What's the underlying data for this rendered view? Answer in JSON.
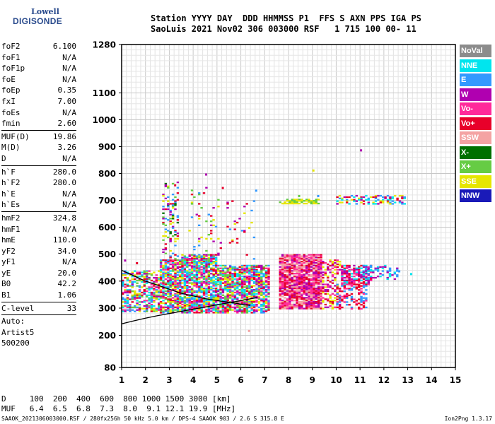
{
  "logo": {
    "line1": "Lowell",
    "line2": "DIGISONDE"
  },
  "header": {
    "line1": "Station YYYY DAY  DDD HHMMSS P1  FFS S AXN PPS IGA PS",
    "line2": "SaoLuis 2021 Nov02 306 003000 RSF   1 715 100 00- 11"
  },
  "params": {
    "g1": [
      [
        "foF2",
        "6.100"
      ],
      [
        "foF1",
        "N/A"
      ],
      [
        "foF1p",
        "N/A"
      ],
      [
        "foE",
        "N/A"
      ],
      [
        "foEp",
        "0.35"
      ],
      [
        "fxI",
        "7.00"
      ],
      [
        "foEs",
        "N/A"
      ],
      [
        "fmin",
        "2.60"
      ]
    ],
    "g2": [
      [
        "MUF(D)",
        "19.86"
      ],
      [
        "M(D)",
        "3.26"
      ],
      [
        "D",
        "N/A"
      ]
    ],
    "g3": [
      [
        "h`F",
        "280.0"
      ],
      [
        "h`F2",
        "280.0"
      ],
      [
        "h`E",
        "N/A"
      ],
      [
        "h`Es",
        "N/A"
      ]
    ],
    "g4": [
      [
        "hmF2",
        "324.8"
      ],
      [
        "hmF1",
        "N/A"
      ],
      [
        "hmE",
        "110.0"
      ],
      [
        "yF2",
        "34.0"
      ],
      [
        "yF1",
        "N/A"
      ],
      [
        "yE",
        "20.0"
      ],
      [
        "B0",
        "42.2"
      ],
      [
        "B1",
        "1.06"
      ]
    ],
    "g5": [
      [
        "C-level",
        "33"
      ]
    ],
    "auto": [
      "Auto:",
      "Artist5",
      "500200"
    ]
  },
  "legend": [
    {
      "label": "NoVal",
      "color": "#8c8c8c"
    },
    {
      "label": "NNE",
      "color": "#00e5ee"
    },
    {
      "label": "E",
      "color": "#3399ff"
    },
    {
      "label": "W",
      "color": "#b000b0"
    },
    {
      "label": "Vo-",
      "color": "#ff2a9a"
    },
    {
      "label": "Vo+",
      "color": "#e8002a"
    },
    {
      "label": "SSW",
      "color": "#f4a3a3"
    },
    {
      "label": "X-",
      "color": "#007000"
    },
    {
      "label": "X+",
      "color": "#66cc44"
    },
    {
      "label": "SSE",
      "color": "#e6e600"
    },
    {
      "label": "NNW",
      "color": "#1a1ab8"
    }
  ],
  "footer": {
    "dist_line": "D     100  200  400  600  800 1000 1500 3000 [km]",
    "muf_line": "MUF   6.4  6.5  6.8  7.3  8.0  9.1 12.1 19.9 [MHz]",
    "file_line": "SAAOK_2021306003000.RSF / 280fx256h 50 kHz 5.0 km / DPS-4 SAAOK 903 / 2.6 S 315.8 E",
    "version": "Ion2Png 1.3.17"
  },
  "chart_data": {
    "type": "scatter",
    "title": "",
    "xlabel": "",
    "ylabel": "",
    "xlim": [
      1,
      15
    ],
    "ylim": [
      80,
      1280
    ],
    "x_ticks": [
      "1",
      "2",
      "3",
      "4",
      "5",
      "6",
      "7",
      "8",
      "9",
      "10",
      "11",
      "12",
      "13",
      "14",
      "15"
    ],
    "y_ticks": [
      "80",
      "200",
      "300",
      "400",
      "500",
      "600",
      "700",
      "800",
      "900",
      "1000",
      "1100",
      "1280"
    ],
    "grid": true,
    "legend_position": "right",
    "echo_regions": [
      {
        "f": [
          1.0,
          2.6
        ],
        "h": [
          290,
          440
        ],
        "mix": [
          "Vo+",
          "Vo-",
          "W",
          "SSE",
          "E",
          "X+",
          "NNE"
        ],
        "density": 0.55
      },
      {
        "f": [
          2.6,
          3.5
        ],
        "h": [
          285,
          480
        ],
        "mix": [
          "Vo+",
          "Vo-",
          "W",
          "SSE",
          "E",
          "X+",
          "NNE"
        ],
        "density": 0.75
      },
      {
        "f": [
          2.7,
          3.4
        ],
        "h": [
          480,
          770
        ],
        "mix": [
          "Vo+",
          "W",
          "SSE",
          "X+",
          "E",
          "X-"
        ],
        "density": 0.25
      },
      {
        "f": [
          3.5,
          5.0
        ],
        "h": [
          285,
          500
        ],
        "mix": [
          "W",
          "Vo+",
          "Vo-",
          "SSE",
          "E",
          "X+",
          "NNE"
        ],
        "density": 0.8
      },
      {
        "f": [
          3.8,
          5.2
        ],
        "h": [
          500,
          760
        ],
        "mix": [
          "W",
          "Vo+",
          "SSE",
          "X+",
          "E"
        ],
        "density": 0.07
      },
      {
        "f": [
          5.0,
          7.2
        ],
        "h": [
          285,
          460
        ],
        "mix": [
          "W",
          "Vo+",
          "Vo-",
          "SSE",
          "E",
          "X+",
          "NNE"
        ],
        "density": 0.75
      },
      {
        "f": [
          5.4,
          6.6
        ],
        "h": [
          460,
          700
        ],
        "mix": [
          "W",
          "Vo+",
          "E",
          "SSE"
        ],
        "density": 0.05
      },
      {
        "f": [
          7.6,
          9.4
        ],
        "h": [
          300,
          500
        ],
        "mix": [
          "Vo-",
          "Vo+",
          "W",
          "SSW"
        ],
        "density": 0.85
      },
      {
        "f": [
          9.4,
          10.2
        ],
        "h": [
          300,
          480
        ],
        "mix": [
          "Vo-",
          "Vo+",
          "W",
          "SSE"
        ],
        "density": 0.45
      },
      {
        "f": [
          10.2,
          11.5
        ],
        "h": [
          390,
          460
        ],
        "mix": [
          "W",
          "Vo-",
          "NNE",
          "Vo+"
        ],
        "density": 0.75
      },
      {
        "f": [
          11.0,
          12.6
        ],
        "h": [
          410,
          460
        ],
        "mix": [
          "NNE",
          "E",
          "W"
        ],
        "density": 0.35
      },
      {
        "f": [
          10.0,
          11.3
        ],
        "h": [
          300,
          390
        ],
        "mix": [
          "Vo+",
          "Vo-",
          "E"
        ],
        "density": 0.35
      },
      {
        "f": [
          7.6,
          9.3
        ],
        "h": [
          688,
          706
        ],
        "mix": [
          "SSE",
          "X+"
        ],
        "density": 0.7
      },
      {
        "f": [
          10.0,
          13.0
        ],
        "h": [
          690,
          720
        ],
        "mix": [
          "E",
          "NNE",
          "W",
          "SSE",
          "Vo+"
        ],
        "density": 0.45
      }
    ],
    "trace_x": [
      1.0,
      1.5,
      2.0,
      2.5,
      3.0,
      3.5,
      4.0,
      4.5,
      5.0,
      5.5,
      6.0,
      6.5,
      6.7
    ],
    "trace_h": [
      242,
      253,
      263,
      272,
      280,
      288,
      296,
      304,
      312,
      320,
      328,
      336,
      340
    ],
    "trace2_x": [
      1.0,
      1.5,
      2.0,
      2.5,
      3.0,
      3.5,
      4.0,
      4.5,
      5.0,
      5.5,
      6.0,
      6.4
    ],
    "trace2_h": [
      440,
      420,
      400,
      385,
      370,
      355,
      345,
      335,
      328,
      322,
      315,
      310
    ]
  }
}
